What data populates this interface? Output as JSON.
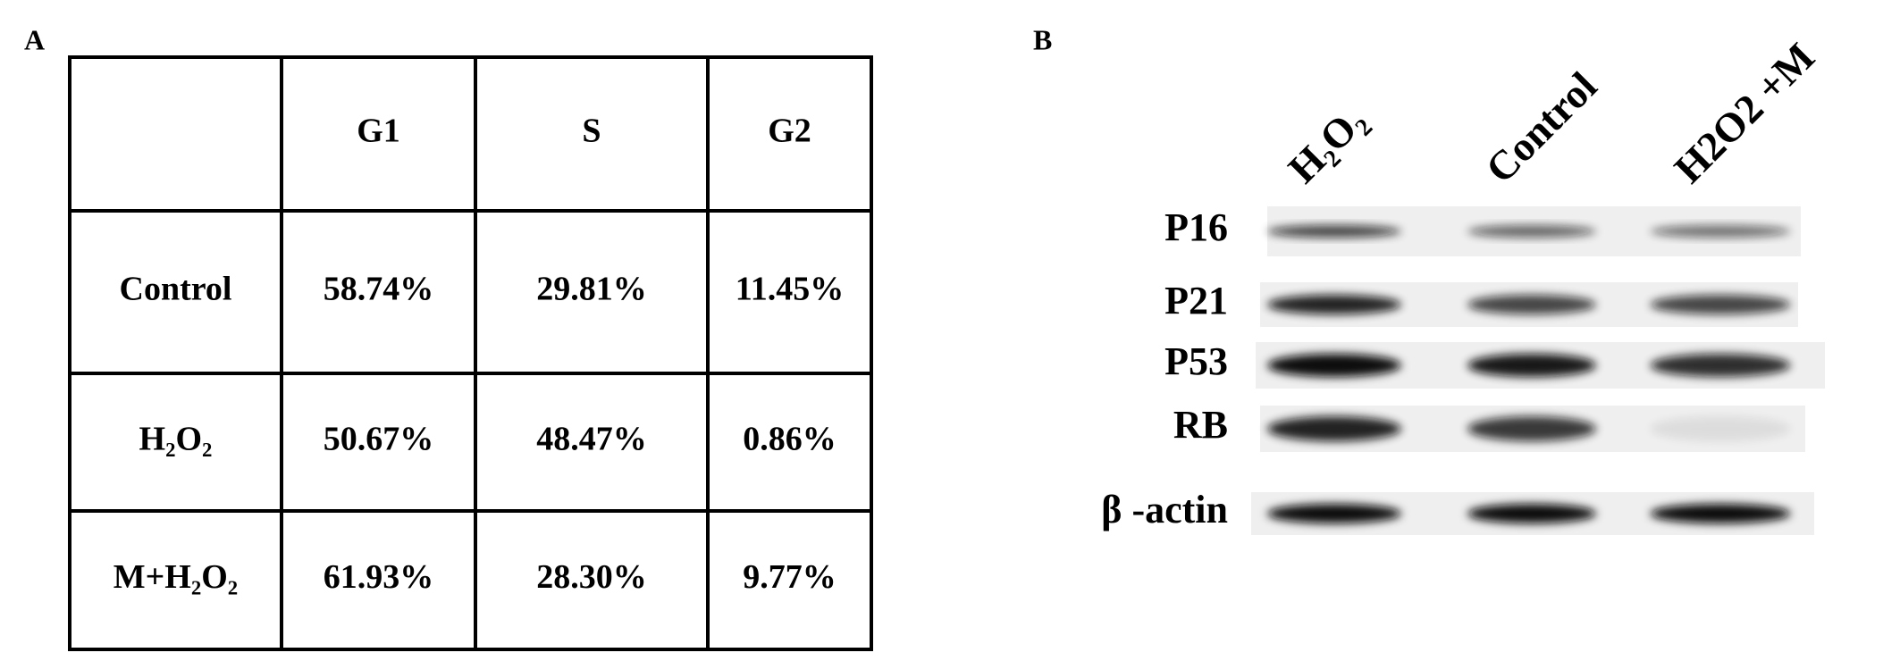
{
  "panel_a": {
    "label": "A",
    "table": {
      "columns": [
        "G1",
        "S",
        "G2"
      ],
      "rows": [
        {
          "label": "Control",
          "cells": [
            "58.74%",
            "29.81%",
            "11.45%"
          ]
        },
        {
          "label": "H₂O₂",
          "cells": [
            "50.67%",
            "48.47%",
            "0.86%"
          ]
        },
        {
          "label": "M+H₂O₂",
          "cells": [
            "61.93%",
            "28.30%",
            "9.77%"
          ]
        }
      ]
    }
  },
  "panel_b": {
    "label": "B",
    "lanes": [
      "H₂O₂",
      "Control",
      "H2O2 +M"
    ],
    "proteins": [
      "P16",
      "P21",
      "P53",
      "RB",
      "β -actin"
    ]
  }
}
